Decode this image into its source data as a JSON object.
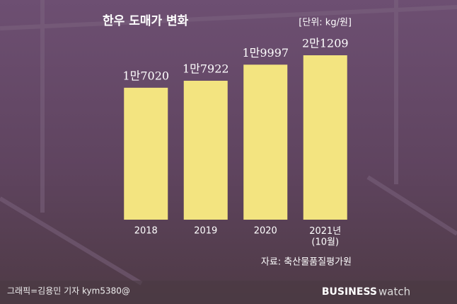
{
  "chart_data": {
    "type": "bar",
    "title": "한우 도매가 변화",
    "unit": "[단위: kg/원]",
    "categories": [
      "2018",
      "2019",
      "2020",
      "2021년\n(10월)"
    ],
    "values": [
      17020,
      17922,
      19997,
      21209
    ],
    "value_labels": [
      "1만7020",
      "1만7922",
      "1만9997",
      "2만1209"
    ],
    "color": "#f3e480",
    "source": "자료: 축산물품질평가원",
    "credit": "그래픽=김용민 기자 kym5380@",
    "logo": [
      "BUSINESS",
      "watch"
    ]
  }
}
